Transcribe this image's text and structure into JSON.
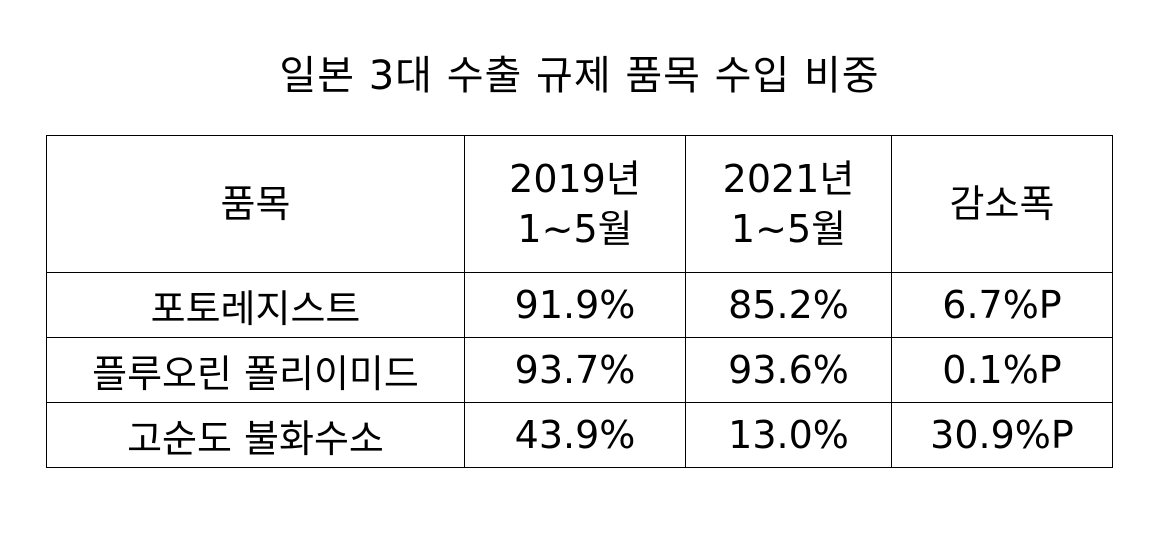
{
  "title": "일본 3대 수출 규제 품목 수입 비중",
  "table": {
    "headers": [
      {
        "line1": "품목",
        "line2": ""
      },
      {
        "line1": "2019년",
        "line2": "1~5월"
      },
      {
        "line1": "2021년",
        "line2": "1~5월"
      },
      {
        "line1": "감소폭",
        "line2": ""
      }
    ],
    "rows": [
      [
        "포토레지스트",
        "91.9%",
        "85.2%",
        "6.7%P"
      ],
      [
        "플루오린 폴리이미드",
        "93.7%",
        "93.6%",
        "0.1%P"
      ],
      [
        "고순도 불화수소",
        "43.9%",
        "13.0%",
        "30.9%P"
      ]
    ]
  }
}
